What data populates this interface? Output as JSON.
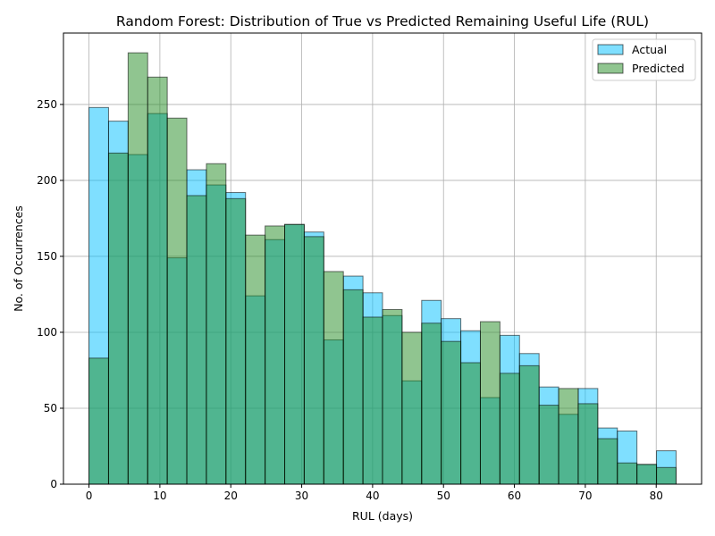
{
  "chart_data": {
    "type": "bar",
    "title": "Random Forest: Distribution of True vs Predicted Remaining Useful Life (RUL)",
    "xlabel": "RUL (days)",
    "ylabel": "No. of Occurrences",
    "xlim": [
      -3.6,
      86.4
    ],
    "ylim": [
      0,
      297
    ],
    "grid": true,
    "legend_position": "top-right",
    "bin_edges": [
      0,
      2.76,
      5.52,
      8.28,
      11.04,
      13.8,
      16.56,
      19.32,
      22.08,
      24.84,
      27.6,
      30.36,
      33.12,
      35.88,
      38.64,
      41.4,
      44.16,
      46.92,
      49.68,
      52.44,
      55.2,
      57.96,
      60.72,
      63.48,
      66.24,
      69,
      71.76,
      74.52,
      77.28,
      80.04,
      82.8
    ],
    "xticks": [
      0,
      10,
      20,
      30,
      40,
      50,
      60,
      70,
      80
    ],
    "yticks": [
      0,
      50,
      100,
      150,
      200,
      250
    ],
    "series": [
      {
        "name": "Actual",
        "color": "#00bfff",
        "values": [
          248,
          239,
          217,
          244,
          149,
          207,
          197,
          192,
          124,
          161,
          171,
          166,
          95,
          137,
          126,
          111,
          68,
          121,
          109,
          101,
          57,
          98,
          86,
          64,
          46,
          63,
          37,
          35,
          13,
          22
        ]
      },
      {
        "name": "Predicted",
        "color": "#228b22",
        "values": [
          83,
          218,
          284,
          268,
          241,
          190,
          211,
          188,
          164,
          170,
          171,
          163,
          140,
          128,
          110,
          115,
          100,
          106,
          94,
          80,
          107,
          73,
          78,
          52,
          63,
          53,
          30,
          14,
          13,
          11
        ]
      }
    ]
  }
}
